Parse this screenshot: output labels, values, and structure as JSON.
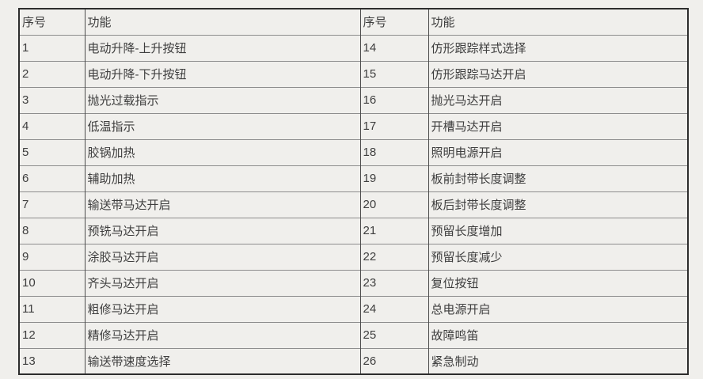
{
  "table": {
    "header": {
      "no": "序号",
      "func": "功能"
    },
    "left_rows": [
      {
        "no": "1",
        "func": "电动升降-上升按钮"
      },
      {
        "no": "2",
        "func": "电动升降-下升按钮"
      },
      {
        "no": "3",
        "func": "抛光过载指示"
      },
      {
        "no": "4",
        "func": "低温指示"
      },
      {
        "no": "5",
        "func": "胶锅加热"
      },
      {
        "no": "6",
        "func": "辅助加热"
      },
      {
        "no": "7",
        "func": "输送带马达开启"
      },
      {
        "no": "8",
        "func": "预铣马达开启"
      },
      {
        "no": "9",
        "func": "涂胶马达开启"
      },
      {
        "no": "10",
        "func": "齐头马达开启"
      },
      {
        "no": "11",
        "func": "粗修马达开启"
      },
      {
        "no": "12",
        "func": "精修马达开启"
      },
      {
        "no": "13",
        "func": "输送带速度选择"
      }
    ],
    "right_rows": [
      {
        "no": "14",
        "func": "仿形跟踪样式选择"
      },
      {
        "no": "15",
        "func": "仿形跟踪马达开启"
      },
      {
        "no": "16",
        "func": "抛光马达开启"
      },
      {
        "no": "17",
        "func": "开槽马达开启"
      },
      {
        "no": "18",
        "func": "照明电源开启"
      },
      {
        "no": "19",
        "func": "板前封带长度调整"
      },
      {
        "no": "20",
        "func": "板后封带长度调整"
      },
      {
        "no": "21",
        "func": "预留长度增加"
      },
      {
        "no": "22",
        "func": "预留长度减少"
      },
      {
        "no": "23",
        "func": "复位按钮"
      },
      {
        "no": "24",
        "func": "总电源开启"
      },
      {
        "no": "25",
        "func": "故障鸣笛"
      },
      {
        "no": "26",
        "func": "紧急制动"
      }
    ],
    "colors": {
      "page_background": "#f0efec",
      "outer_border": "#2d2d2d",
      "vertical_rule": "#4c4c4c",
      "horizontal_rule": "#8d8d8d",
      "text": "#3e3e3e"
    }
  }
}
